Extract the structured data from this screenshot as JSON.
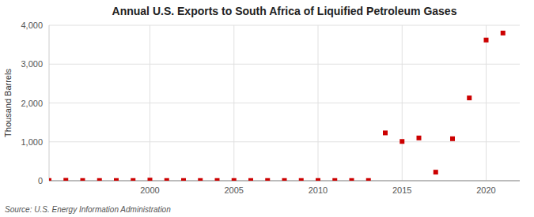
{
  "chart_data": {
    "type": "scatter",
    "title": "Annual U.S. Exports to South Africa of Liquified Petroleum Gases",
    "ylabel": "Thousand Barrels",
    "annotation": "Source: U.S. Energy Information Administration",
    "x": [
      1994,
      1995,
      1996,
      1997,
      1998,
      1999,
      2000,
      2001,
      2002,
      2003,
      2004,
      2005,
      2006,
      2007,
      2008,
      2009,
      2010,
      2011,
      2012,
      2013,
      2014,
      2015,
      2016,
      2017,
      2018,
      2019,
      2020,
      2021
    ],
    "values": [
      5,
      10,
      5,
      5,
      5,
      5,
      15,
      5,
      5,
      5,
      5,
      5,
      5,
      5,
      5,
      5,
      5,
      5,
      5,
      5,
      1230,
      1010,
      1100,
      220,
      1080,
      2130,
      3620,
      3800
    ],
    "color": "#cc0000",
    "marker": "square",
    "xlim": [
      1994,
      2022
    ],
    "ylim": [
      0,
      4000
    ],
    "xticks": [
      2000,
      2005,
      2010,
      2015,
      2020
    ],
    "yticks": [
      0,
      {
        "value": 1000,
        "label": "1,000"
      },
      {
        "value": 2000,
        "label": "2,000"
      },
      {
        "value": 3000,
        "label": "3,000"
      },
      {
        "value": 4000,
        "label": "4,000"
      }
    ],
    "grid": true
  }
}
